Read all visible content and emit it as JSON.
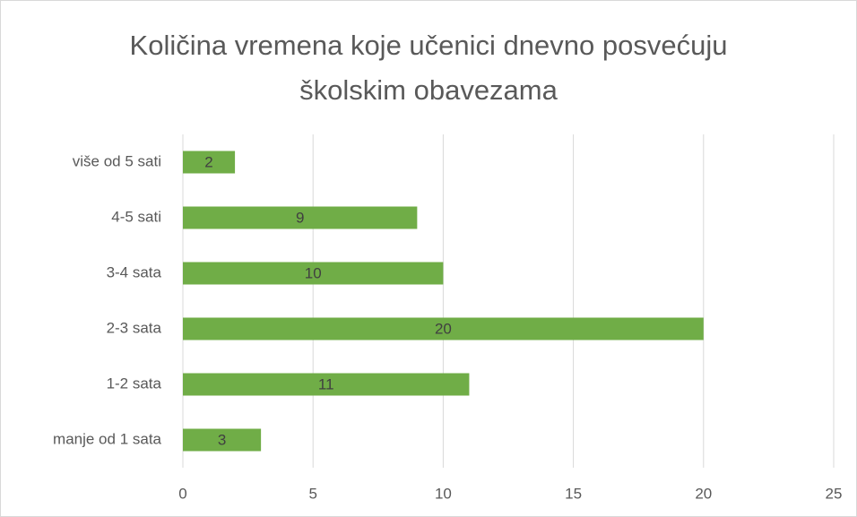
{
  "chart_data": {
    "type": "bar",
    "orientation": "horizontal",
    "title": "Količina vremena koje učenici dnevno posvećuju školskim obavezama",
    "categories": [
      "manje od 1 sata",
      "1-2 sata",
      "2-3 sata",
      "3-4 sata",
      "4-5 sati",
      "više od 5 sati"
    ],
    "values": [
      3,
      11,
      20,
      10,
      9,
      2
    ],
    "color": "#70ad47",
    "xlim": [
      0,
      25
    ],
    "xticks": [
      0,
      5,
      10,
      15,
      20,
      25
    ],
    "grid": true
  }
}
